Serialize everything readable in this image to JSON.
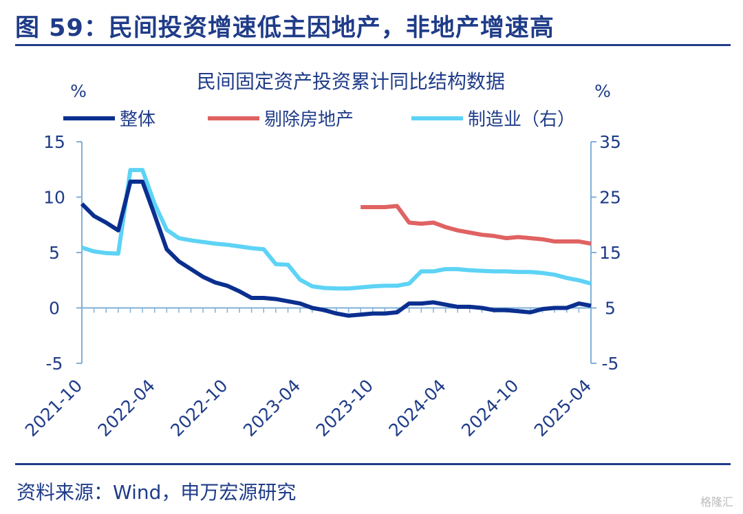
{
  "figure": {
    "title": "图 59：民间投资增速低主因地产，非地产增速高",
    "source": "资料来源：Wind，申万宏源研究",
    "watermark": "格隆汇"
  },
  "colors": {
    "brand": "#1f3c88",
    "series_total": "#0b2f8f",
    "series_ex_property": "#e06262",
    "series_manufacturing": "#5dd3f5",
    "axis": "#7fb0d8"
  },
  "chart_data": {
    "type": "line",
    "title": "民间固定资产投资累计同比结构数据",
    "ylabel": "%",
    "ylabel_right": "%",
    "ylim": [
      -5,
      15
    ],
    "ylim_right": [
      -5,
      35
    ],
    "yticks": [
      15,
      10,
      5,
      0,
      -5
    ],
    "yticks_right": [
      35,
      25,
      15,
      5,
      -5
    ],
    "legend_position": "top",
    "grid": false,
    "xtick_labels": [
      "2021-10",
      "2022-04",
      "2022-10",
      "2023-04",
      "2023-10",
      "2024-04",
      "2024-10",
      "2025-04"
    ],
    "x": [
      "2021-10",
      "2021-11",
      "2021-12",
      "2022-01",
      "2022-02",
      "2022-03",
      "2022-04",
      "2022-05",
      "2022-06",
      "2022-07",
      "2022-08",
      "2022-09",
      "2022-10",
      "2022-11",
      "2022-12",
      "2023-01",
      "2023-02",
      "2023-03",
      "2023-04",
      "2023-05",
      "2023-06",
      "2023-07",
      "2023-08",
      "2023-09",
      "2023-10",
      "2023-11",
      "2023-12",
      "2024-01",
      "2024-02",
      "2024-03",
      "2024-04",
      "2024-05",
      "2024-06",
      "2024-07",
      "2024-08",
      "2024-09",
      "2024-10",
      "2024-11",
      "2024-12",
      "2025-01",
      "2025-02",
      "2025-03",
      "2025-04"
    ],
    "series": [
      {
        "name": "整体",
        "axis": "left",
        "values": [
          9.4,
          8.3,
          7.7,
          7.0,
          11.4,
          11.4,
          8.4,
          5.3,
          4.2,
          3.5,
          2.8,
          2.3,
          2.0,
          1.5,
          0.9,
          0.9,
          0.8,
          0.6,
          0.4,
          0.0,
          -0.2,
          -0.5,
          -0.7,
          -0.6,
          -0.5,
          -0.5,
          -0.4,
          0.4,
          0.4,
          0.5,
          0.3,
          0.1,
          0.1,
          0.0,
          -0.2,
          -0.2,
          -0.3,
          -0.4,
          -0.1,
          0.0,
          0.0,
          0.4,
          0.2
        ]
      },
      {
        "name": "剔除房地产",
        "axis": "left",
        "values": [
          null,
          null,
          null,
          null,
          null,
          null,
          null,
          null,
          null,
          null,
          null,
          null,
          null,
          null,
          null,
          null,
          null,
          null,
          null,
          null,
          null,
          null,
          null,
          9.1,
          9.1,
          9.1,
          9.2,
          7.7,
          7.6,
          7.7,
          7.3,
          7.0,
          6.8,
          6.6,
          6.5,
          6.3,
          6.4,
          6.3,
          6.2,
          6.0,
          6.0,
          6.0,
          5.8
        ]
      },
      {
        "name": "制造业（右）",
        "axis": "right",
        "values": [
          15.9,
          15.2,
          14.9,
          14.8,
          29.9,
          29.9,
          23.8,
          19.1,
          17.6,
          17.2,
          16.9,
          16.6,
          16.4,
          16.1,
          15.8,
          15.6,
          12.9,
          12.8,
          10.1,
          8.9,
          8.6,
          8.5,
          8.5,
          8.7,
          8.9,
          9.0,
          9.0,
          9.4,
          11.6,
          11.6,
          12.0,
          12.0,
          11.8,
          11.7,
          11.6,
          11.6,
          11.5,
          11.5,
          11.3,
          11.0,
          10.4,
          10.0,
          9.4
        ]
      }
    ]
  }
}
